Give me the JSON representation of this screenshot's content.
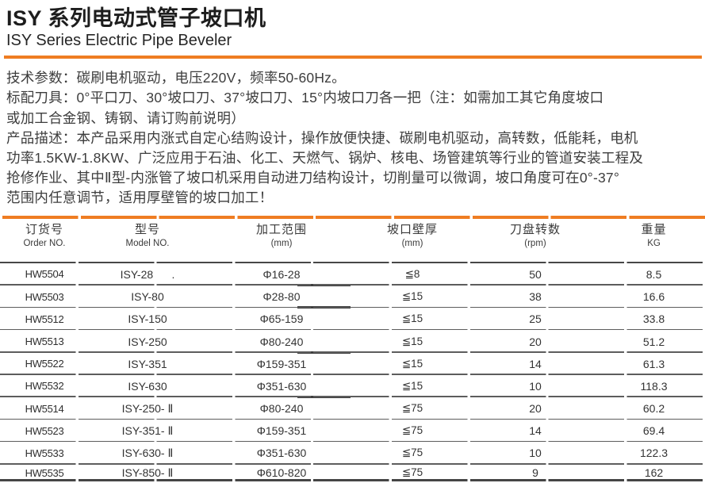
{
  "header": {
    "title_zh": "ISY 系列电动式管子坡口机",
    "title_en": "ISY Series Electric Pipe Beveler"
  },
  "description": {
    "lines": [
      "技术参数：碳刷电机驱动，电压220V，频率50-60Hz。",
      "标配刀具：0°平口刀、30°坡口刀、37°坡口刀、15°内坡口刀各一把（注：如需加工其它角度坡口",
      "或加工合金钢、铸钢、请订购前说明）",
      "产品描述：本产品采用内涨式自定心结购设计，操作放便快捷、碳刷电机驱动，高转数，低能耗，电机",
      "功率1.5KW-1.8KW、广泛应用于石油、化工、天燃气、锅炉、核电、场管建筑等行业的管道安装工程及",
      "抢修作业、其中Ⅱ型-内涨管了坡口机采用自动进刀结构设计，切削量可以微调，坡口角度可在0°-37°",
      "范围内任意调节，适用厚壁管的坡口加工！"
    ]
  },
  "table": {
    "columns": [
      {
        "zh": "订货号",
        "en": "Order NO."
      },
      {
        "zh": "型号",
        "en": "Model NO."
      },
      {
        "zh": "加工范围",
        "en": "(mm)"
      },
      {
        "zh": "坡口壁厚",
        "en": "(mm)"
      },
      {
        "zh": "刀盘转数",
        "en": "(rpm)"
      },
      {
        "zh": "重量",
        "en": "KG"
      }
    ],
    "rows": [
      [
        "HW5504",
        "ISY-28      .",
        "Φ16-28",
        "≦8",
        "50",
        "8.5"
      ],
      [
        "HW5503",
        "ISY-80",
        "Φ28-80",
        "≦15",
        "38",
        "16.6"
      ],
      [
        "HW5512",
        "ISY-150",
        "Φ65-159",
        "≦15",
        "25",
        "33.8"
      ],
      [
        "HW5513",
        "ISY-250",
        "Φ80-240",
        "≦15",
        "20",
        "51.2"
      ],
      [
        "HW5522",
        "ISY-351",
        "Φ159-351",
        "≦15",
        "14",
        "61.3"
      ],
      [
        "HW5532",
        "ISY-630",
        "Φ351-630",
        "≦15",
        "10",
        "118.3"
      ],
      [
        "HW5514",
        "ISY-250- Ⅱ",
        "Φ80-240",
        "≦75",
        "20",
        "60.2"
      ],
      [
        "HW5523",
        "ISY-351- Ⅱ",
        "Φ159-351",
        "≦75",
        "14",
        "69.4"
      ],
      [
        "HW5533",
        "ISY-630- Ⅱ",
        "Φ351-630",
        "≦75",
        "10",
        "122.3"
      ],
      [
        "HW5535",
        "ISY-850- Ⅱ",
        "Φ610-820",
        "≦75",
        "9",
        "162"
      ]
    ]
  },
  "colors": {
    "accent_orange": "#EF7D22",
    "rule_gray": "#5d5d5d",
    "text_dark": "#3d3d3d"
  }
}
